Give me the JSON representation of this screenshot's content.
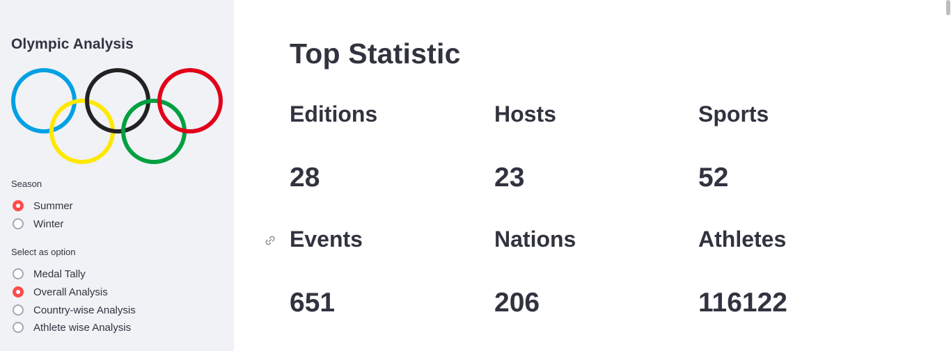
{
  "sidebar": {
    "title": "Olympic Analysis",
    "logo_icon": "olympic-rings-icon",
    "ring_colors": [
      "#0081c8",
      "#fcb131",
      "#000000",
      "#00a651",
      "#ee334e"
    ],
    "season": {
      "label": "Season",
      "options": [
        {
          "label": "Summer",
          "checked": true
        },
        {
          "label": "Winter",
          "checked": false
        }
      ]
    },
    "option_group": {
      "label": "Select as option",
      "options": [
        {
          "label": "Medal Tally",
          "checked": false
        },
        {
          "label": "Overall Analysis",
          "checked": true
        },
        {
          "label": "Country-wise Analysis",
          "checked": false
        },
        {
          "label": "Athlete wise Analysis",
          "checked": false
        }
      ]
    },
    "accent_color": "#ff4b4b"
  },
  "main": {
    "title": "Top Statistic",
    "stats": [
      {
        "label": "Editions",
        "value": "28"
      },
      {
        "label": "Hosts",
        "value": "23"
      },
      {
        "label": "Sports",
        "value": "52"
      },
      {
        "label": "Events",
        "value": "651"
      },
      {
        "label": "Nations",
        "value": "206"
      },
      {
        "label": "Athletes",
        "value": "116122"
      }
    ],
    "anchor_icon": "link-icon"
  }
}
